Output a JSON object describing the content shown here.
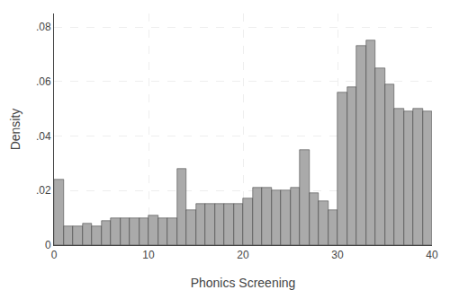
{
  "chart_data": {
    "type": "bar",
    "bins": [
      0,
      1,
      2,
      3,
      4,
      5,
      6,
      7,
      8,
      9,
      10,
      11,
      12,
      13,
      14,
      15,
      16,
      17,
      18,
      19,
      20,
      21,
      22,
      23,
      24,
      25,
      26,
      27,
      28,
      29,
      30,
      31,
      32,
      33,
      34,
      35,
      36,
      37,
      38,
      39,
      40
    ],
    "values": [
      0.024,
      0.007,
      0.007,
      0.008,
      0.007,
      0.009,
      0.01,
      0.01,
      0.01,
      0.01,
      0.011,
      0.01,
      0.01,
      0.028,
      0.013,
      0.015,
      0.015,
      0.015,
      0.015,
      0.015,
      0.017,
      0.021,
      0.021,
      0.02,
      0.02,
      0.021,
      0.035,
      0.019,
      0.016,
      0.013,
      0.056,
      0.058,
      0.073,
      0.075,
      0.065,
      0.059,
      0.05,
      0.049,
      0.05,
      0.049
    ],
    "color": "#aaaaaa",
    "x_label": "Phonics Screening",
    "y_label": "Density",
    "xlim": [
      0,
      40
    ],
    "ylim": [
      0,
      0.085
    ],
    "xticks": [
      0,
      10,
      20,
      30,
      40
    ],
    "yticks": [
      0,
      {
        "value": 0.02,
        "label": ".02"
      },
      {
        "value": 0.04,
        "label": ".04"
      },
      {
        "value": 0.06,
        "label": ".06"
      },
      {
        "value": 0.08,
        "label": ".08"
      }
    ],
    "grid": true
  }
}
